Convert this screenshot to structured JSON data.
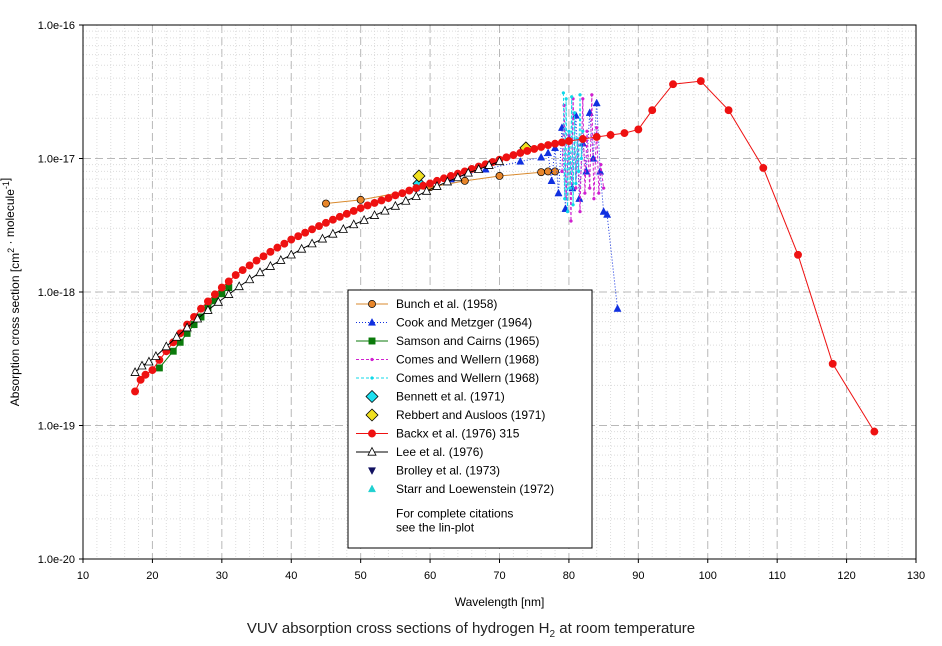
{
  "caption": {
    "prefix": "VUV absorption cross sections of hydrogen H",
    "subscript": "2",
    "suffix": " at room temperature"
  },
  "chart_data": {
    "type": "scatter",
    "xlabel": "Wavelength [nm]",
    "ylabel": {
      "parts": [
        {
          "t": "Absorption cross section [cm"
        },
        {
          "t": "2",
          "sup": true
        },
        {
          "t": " · molecule"
        },
        {
          "t": "-1",
          "sup": true
        },
        {
          "t": "]"
        }
      ]
    },
    "xlim": [
      10,
      130
    ],
    "ylim": [
      1e-20,
      1e-16
    ],
    "yscale": "log",
    "grid": true,
    "xticks": [
      "10",
      "20",
      "30",
      "40",
      "50",
      "60",
      "70",
      "80",
      "90",
      "100",
      "110",
      "120",
      "130"
    ],
    "yticks": [
      "1.0e-20",
      "1.0e-19",
      "1.0e-18",
      "1.0e-17",
      "1.0e-16"
    ],
    "legend": {
      "position": "center-bottom",
      "note": [
        "For complete citations",
        "see the lin-plot"
      ]
    },
    "series": [
      {
        "name": "Bunch et al. (1958)",
        "color": "#e8862a",
        "line_color": "#d98a2e",
        "marker": "circle",
        "line": "solid",
        "x": [
          45,
          50,
          60,
          65,
          70,
          76,
          77,
          78
        ],
        "y": [
          4.6e-18,
          4.9e-18,
          6.1e-18,
          6.8e-18,
          7.4e-18,
          7.9e-18,
          8e-18,
          8e-18
        ]
      },
      {
        "name": "Cook and Metzger (1964)",
        "color": "#1030e0",
        "line_color": "#1030e0",
        "marker": "triangle",
        "line": "dotted",
        "x": [
          58,
          63,
          68,
          73,
          76,
          77,
          77.5,
          78,
          78.5,
          79,
          79.5,
          80,
          80.5,
          81,
          81.5,
          82,
          82.5,
          83,
          83.5,
          84,
          84.5,
          85,
          85.5,
          87
        ],
        "y": [
          6e-18,
          7e-18,
          8.3e-18,
          9.5e-18,
          1.02e-17,
          1.1e-17,
          6.8e-18,
          1.2e-17,
          5.5e-18,
          1.7e-17,
          4.2e-18,
          1.4e-17,
          6e-18,
          2.1e-17,
          5e-18,
          1.3e-17,
          8e-18,
          2.2e-17,
          1e-17,
          2.6e-17,
          8e-18,
          4e-18,
          3.8e-18,
          7.5e-19
        ]
      },
      {
        "name": "Samson and Cairns (1965)",
        "color": "#0b7a0b",
        "line_color": "#0b7a0b",
        "marker": "square",
        "line": "solid",
        "x": [
          21,
          23,
          24,
          25,
          26,
          27,
          28,
          29,
          30,
          31
        ],
        "y": [
          2.7e-19,
          3.6e-19,
          4.2e-19,
          4.9e-19,
          5.7e-19,
          6.5e-19,
          7.6e-19,
          8.6e-19,
          9.7e-19,
          1.08e-18
        ]
      },
      {
        "name": "Comes and Wellern (1968)",
        "color": "#d020d0",
        "line_color": "#d020d0",
        "marker": "star",
        "line": "dashed",
        "x": [
          79,
          79.3,
          79.6,
          80,
          80.3,
          80.6,
          81,
          81.3,
          81.6,
          82,
          82.3,
          82.6,
          83,
          83.3,
          83.6,
          84,
          84.3,
          84.6,
          85
        ],
        "y": [
          8e-18,
          2.5e-17,
          5e-18,
          1.5e-17,
          3.4e-18,
          2.8e-17,
          6e-18,
          1.4e-17,
          4e-18,
          2.8e-17,
          5.5e-18,
          1.6e-17,
          6e-18,
          3e-17,
          5e-18,
          1.7e-17,
          5.5e-18,
          9e-18,
          6e-18
        ]
      },
      {
        "name": "Comes and Wellern (1968)",
        "color": "#10d8e8",
        "line_color": "#10d8e8",
        "marker": "star",
        "line": "dashed",
        "x": [
          79.2,
          79.4,
          79.6,
          79.8,
          80,
          80.2,
          80.4,
          80.6,
          80.8,
          81,
          81.2,
          81.4,
          81.6,
          81.8,
          82
        ],
        "y": [
          3.1e-17,
          5e-18,
          2.8e-17,
          4e-18,
          1.6e-17,
          6e-18,
          2.9e-17,
          4.5e-18,
          2.2e-17,
          6.5e-18,
          1.4e-17,
          8e-18,
          3e-17,
          1e-17,
          1.6e-17
        ]
      },
      {
        "name": "Bennett et al. (1971)",
        "color": "#1ee0f0",
        "line_color": "#1ee0f0",
        "marker": "diamond",
        "line": "none",
        "x": [
          58.4
        ],
        "y": [
          6.5e-18
        ]
      },
      {
        "name": "Rebbert and Ausloos (1971)",
        "color": "#f0e020",
        "line_color": "#f0e020",
        "marker": "diamond",
        "line": "none",
        "x": [
          58.4,
          73.8
        ],
        "y": [
          7.4e-18,
          1.2e-17
        ]
      },
      {
        "name": "Backx et al. (1976) 315",
        "color": "#ee1111",
        "line_color": "#ee1111",
        "marker": "circle",
        "line": "solid",
        "x": [
          17.5,
          18.3,
          19,
          20,
          21,
          22,
          23,
          24,
          25,
          26,
          27,
          28,
          29,
          30,
          31,
          32,
          33,
          34,
          35,
          36,
          37,
          38,
          39,
          40,
          41,
          42,
          43,
          44,
          45,
          46,
          47,
          48,
          49,
          50,
          51,
          52,
          53,
          54,
          55,
          56,
          57,
          58,
          59,
          60,
          61,
          62,
          63,
          64,
          65,
          66,
          67,
          68,
          69,
          70,
          71,
          72,
          73,
          74,
          75,
          76,
          77,
          78,
          79,
          80,
          82,
          84,
          86,
          88,
          90,
          92,
          95,
          99,
          103,
          108,
          113,
          118,
          124
        ],
        "y": [
          1.8e-19,
          2.2e-19,
          2.4e-19,
          2.6e-19,
          3.1e-19,
          3.6e-19,
          4.2e-19,
          4.9e-19,
          5.7e-19,
          6.5e-19,
          7.5e-19,
          8.5e-19,
          9.6e-19,
          1.08e-18,
          1.2e-18,
          1.34e-18,
          1.46e-18,
          1.58e-18,
          1.72e-18,
          1.85e-18,
          2e-18,
          2.15e-18,
          2.3e-18,
          2.47e-18,
          2.62e-18,
          2.78e-18,
          2.95e-18,
          3.12e-18,
          3.3e-18,
          3.48e-18,
          3.66e-18,
          3.85e-18,
          4.05e-18,
          4.25e-18,
          4.45e-18,
          4.65e-18,
          4.85e-18,
          5.05e-18,
          5.3e-18,
          5.5e-18,
          5.75e-18,
          6e-18,
          6.25e-18,
          6.5e-18,
          6.8e-18,
          7.1e-18,
          7.4e-18,
          7.7e-18,
          8e-18,
          8.35e-18,
          8.7e-18,
          9.05e-18,
          9.4e-18,
          9.8e-18,
          1.02e-17,
          1.06e-17,
          1.1e-17,
          1.14e-17,
          1.18e-17,
          1.22e-17,
          1.26e-17,
          1.29e-17,
          1.32e-17,
          1.35e-17,
          1.4e-17,
          1.45e-17,
          1.5e-17,
          1.55e-17,
          1.65e-17,
          2.3e-17,
          3.6e-17,
          3.8e-17,
          2.3e-17,
          8.5e-18,
          1.9e-18,
          2.9e-19,
          9e-20
        ]
      },
      {
        "name": "Lee et al. (1976)",
        "color": "#ffffff",
        "line_color": "#000000",
        "marker": "triangle-open",
        "line": "solid",
        "x": [
          17.5,
          18.5,
          19.5,
          20.5,
          22,
          23.5,
          25,
          26.5,
          28,
          29.5,
          31,
          32.5,
          34,
          35.5,
          37,
          38.5,
          40,
          41.5,
          43,
          44.5,
          46,
          47.5,
          49,
          50.5,
          52,
          53.5,
          55,
          56.5,
          58,
          59.5,
          61,
          62.5,
          64,
          65.5,
          67,
          68.5,
          70
        ],
        "y": [
          2.5e-19,
          2.8e-19,
          3e-19,
          3.3e-19,
          3.9e-19,
          4.6e-19,
          5.4e-19,
          6.3e-19,
          7.3e-19,
          8.4e-19,
          9.6e-19,
          1.1e-18,
          1.24e-18,
          1.4e-18,
          1.56e-18,
          1.73e-18,
          1.9e-18,
          2.1e-18,
          2.3e-18,
          2.5e-18,
          2.72e-18,
          2.95e-18,
          3.2e-18,
          3.45e-18,
          3.75e-18,
          4.05e-18,
          4.4e-18,
          4.8e-18,
          5.2e-18,
          5.7e-18,
          6.2e-18,
          6.7e-18,
          7.2e-18,
          7.8e-18,
          8.3e-18,
          8.9e-18,
          9.5e-18
        ]
      },
      {
        "name": "Brolley et al. (1973)",
        "color": "#101060",
        "line_color": "#101060",
        "marker": "triangle-down",
        "line": "none",
        "x": [],
        "y": []
      },
      {
        "name": "Starr and Loewenstein (1972)",
        "color": "#20d0d0",
        "line_color": "#20d0d0",
        "marker": "triangle",
        "line": "none",
        "x": [],
        "y": []
      }
    ]
  }
}
